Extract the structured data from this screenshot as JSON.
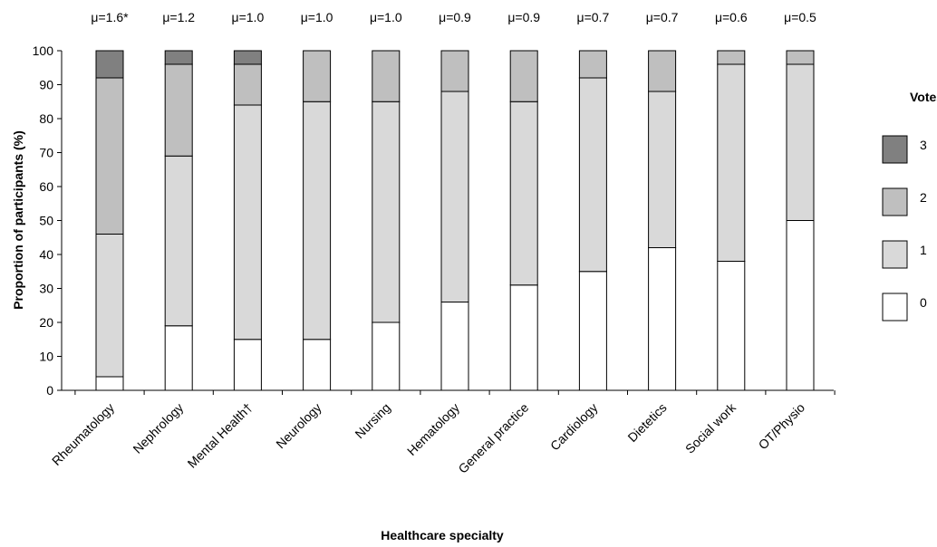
{
  "chart_data": {
    "type": "bar",
    "stacked": true,
    "categories": [
      "Rheumatology",
      "Nephrology",
      "Mental Health†",
      "Neurology",
      "Nursing",
      "Hematology",
      "General practice",
      "Cardiology",
      "Dietetics",
      "Social work",
      "OT/Physio"
    ],
    "means": [
      "μ=1.6*",
      "μ=1.2",
      "μ=1.0",
      "μ=1.0",
      "μ=1.0",
      "μ=0.9",
      "μ=0.9",
      "μ=0.7",
      "μ=0.7",
      "μ=0.6",
      "μ=0.5"
    ],
    "series": [
      {
        "name": "0",
        "color": "#ffffff",
        "values": [
          4,
          19,
          15,
          15,
          20,
          26,
          31,
          35,
          42,
          38,
          50
        ]
      },
      {
        "name": "1",
        "color": "#d9d9d9",
        "values": [
          42,
          50,
          69,
          70,
          65,
          62,
          54,
          57,
          46,
          58,
          46
        ]
      },
      {
        "name": "2",
        "color": "#bfbfbf",
        "values": [
          46,
          27,
          12,
          15,
          15,
          12,
          15,
          8,
          12,
          4,
          4
        ]
      },
      {
        "name": "3",
        "color": "#808080",
        "values": [
          8,
          4,
          4,
          0,
          0,
          0,
          0,
          0,
          0,
          0,
          0
        ]
      }
    ],
    "ylabel": "Proportion of participants  (%)",
    "xlabel": "Healthcare specialty",
    "ylim": [
      0,
      100
    ],
    "yticks": [
      0,
      10,
      20,
      30,
      40,
      50,
      60,
      70,
      80,
      90,
      100
    ],
    "legend_title": "Votes",
    "legend_order": [
      "3",
      "2",
      "1",
      "0"
    ],
    "legend_position": "right",
    "grid": false
  }
}
